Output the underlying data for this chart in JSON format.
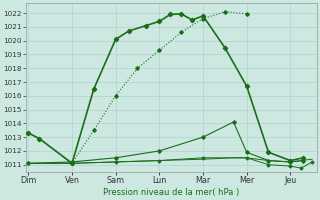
{
  "xlabel": "Pression niveau de la mer( hPa )",
  "background_color": "#cce8e0",
  "plot_bg_color": "#cce8e0",
  "grid_color": "#aacccc",
  "ylim_min": 1010.5,
  "ylim_max": 1022.7,
  "yticks": [
    1011,
    1012,
    1013,
    1014,
    1015,
    1016,
    1017,
    1018,
    1019,
    1020,
    1021,
    1022
  ],
  "xtick_labels": [
    "Dim",
    "Ven",
    "Sam",
    "Lun",
    "Mar",
    "Mer",
    "Jeu"
  ],
  "xtick_positions": [
    0,
    1,
    2,
    3,
    4,
    5,
    6
  ],
  "xlim_min": -0.05,
  "xlim_max": 6.6,
  "line_color": "#1a6e1a",
  "line1_solid": {
    "x": [
      0,
      0.25,
      1.0,
      1.5,
      2.0,
      2.3,
      2.7,
      3.0,
      3.25,
      3.5,
      3.75,
      4.0,
      4.5,
      5.0,
      5.5,
      6.0,
      6.3
    ],
    "y": [
      1013.3,
      1012.9,
      1011.1,
      1016.5,
      1020.1,
      1020.7,
      1021.1,
      1021.4,
      1021.9,
      1021.95,
      1021.5,
      1021.8,
      1019.5,
      1016.7,
      1011.9,
      1011.3,
      1011.5
    ]
  },
  "line2_dotted": {
    "x": [
      0,
      0.25,
      1.0,
      1.5,
      2.0,
      2.5,
      3.0,
      3.5,
      4.0,
      4.5,
      5.0
    ],
    "y": [
      1013.3,
      1012.9,
      1011.1,
      1013.5,
      1016.0,
      1018.0,
      1019.3,
      1020.6,
      1021.6,
      1022.1,
      1021.95
    ]
  },
  "line3_flat1": {
    "x": [
      0,
      1.0,
      2.0,
      3.0,
      4.0,
      4.7,
      5.0,
      5.5,
      6.0,
      6.3
    ],
    "y": [
      1011.1,
      1011.2,
      1011.5,
      1012.0,
      1013.0,
      1014.1,
      1011.9,
      1011.3,
      1011.2,
      1011.3
    ]
  },
  "line4_flat2": {
    "x": [
      0,
      1.0,
      2.0,
      3.0,
      4.0,
      5.0,
      5.5,
      6.0,
      6.25,
      6.5
    ],
    "y": [
      1011.1,
      1011.1,
      1011.2,
      1011.3,
      1011.5,
      1011.5,
      1011.0,
      1010.9,
      1010.75,
      1011.2
    ]
  },
  "line5_flat3": {
    "x": [
      0,
      1.0,
      2.0,
      3.0,
      4.0,
      4.7,
      5.0,
      5.5,
      6.0,
      6.5
    ],
    "y": [
      1011.1,
      1011.1,
      1011.2,
      1011.3,
      1011.4,
      1011.5,
      1011.5,
      1011.3,
      1011.2,
      1011.4
    ]
  }
}
